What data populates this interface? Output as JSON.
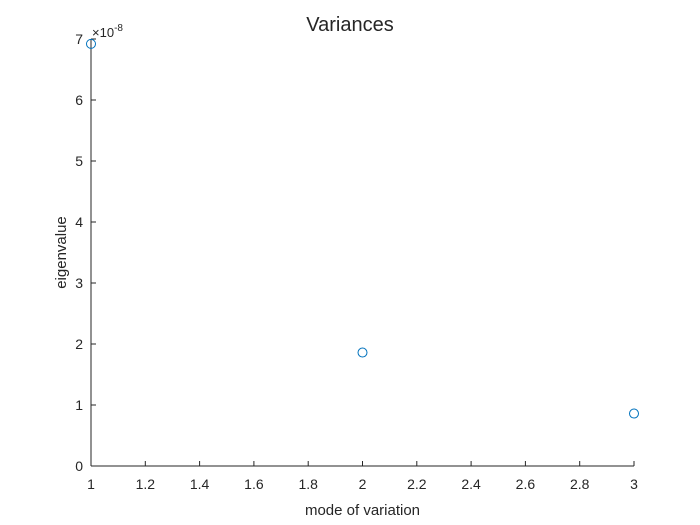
{
  "chart_data": {
    "type": "scatter",
    "title": "Variances",
    "xlabel": "mode of variation",
    "ylabel": "eigenvalue",
    "y_exponent_label": "×10",
    "y_exponent_power": "-8",
    "xlim": [
      1,
      3
    ],
    "ylim": [
      0,
      7
    ],
    "x_ticks": [
      "1",
      "1.2",
      "1.4",
      "1.6",
      "1.8",
      "2",
      "2.2",
      "2.4",
      "2.6",
      "2.8",
      "3"
    ],
    "x_tick_values": [
      1,
      1.2,
      1.4,
      1.6,
      1.8,
      2,
      2.2,
      2.4,
      2.6,
      2.8,
      3
    ],
    "y_ticks": [
      "0",
      "1",
      "2",
      "3",
      "4",
      "5",
      "6",
      "7"
    ],
    "y_tick_values": [
      0,
      1,
      2,
      3,
      4,
      5,
      6,
      7
    ],
    "grid": false,
    "marker": "open-circle",
    "marker_color": "#0072BD",
    "series": [
      {
        "x": [
          1,
          2,
          3
        ],
        "y": [
          6.92,
          1.86,
          0.86
        ]
      }
    ]
  }
}
